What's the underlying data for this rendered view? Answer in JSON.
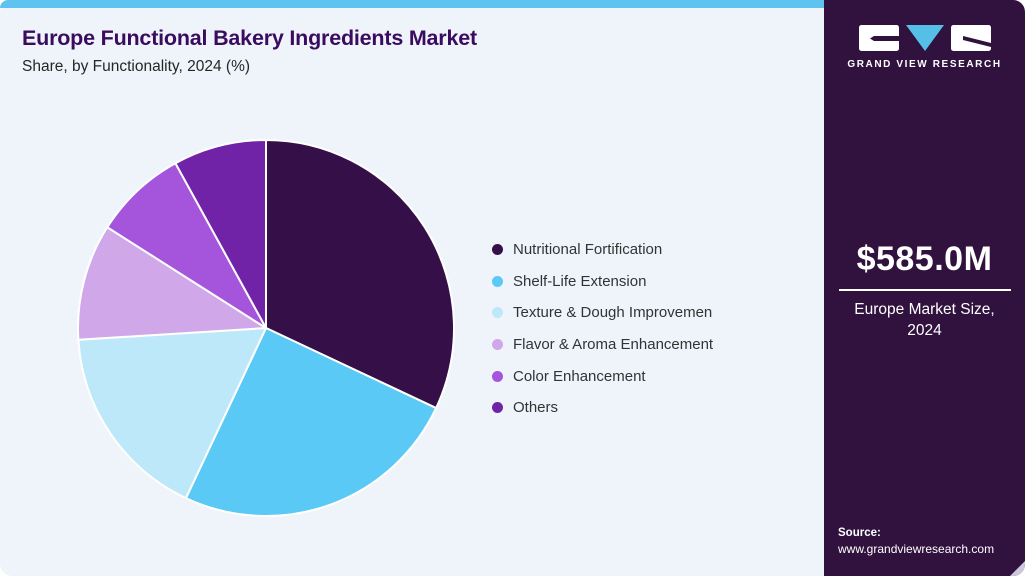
{
  "header": {
    "title": "Europe Functional Bakery Ingredients Market",
    "subtitle": "Share, by Functionality, 2024 (%)"
  },
  "chart_data": {
    "type": "pie",
    "title": "Europe Functional Bakery Ingredients Market Share, by Functionality, 2024 (%)",
    "unit": "percent",
    "start_angle_deg": 0,
    "direction": "clockwise",
    "legend_position": "right",
    "slices": [
      {
        "label": "Nutritional Fortification",
        "value": 32,
        "color": "#351048"
      },
      {
        "label": "Shelf-Life Extension",
        "value": 25,
        "color": "#5bc9f5"
      },
      {
        "label": "Texture & Dough Improvemen",
        "value": 17,
        "color": "#bde8f9"
      },
      {
        "label": "Flavor & Aroma Enhancement",
        "value": 10,
        "color": "#d0a7e9"
      },
      {
        "label": "Color Enhancement",
        "value": 8,
        "color": "#a455dc"
      },
      {
        "label": "Others",
        "value": 8,
        "color": "#7123a8"
      }
    ]
  },
  "sidebar": {
    "brand": "GRAND VIEW RESEARCH",
    "logo_triangle_color": "#56bfe8",
    "market_size": {
      "value": "$585.0M",
      "caption_line1": "Europe Market Size,",
      "caption_line2": "2024"
    },
    "source": {
      "label": "Source:",
      "url": "www.grandviewresearch.com"
    }
  },
  "colors": {
    "card_background": "#eff4fa",
    "top_accent_bar": "#5ec3ee",
    "sidebar_background": "#31123f",
    "title_text": "#3a0c5f",
    "legend_text": "#333333"
  }
}
